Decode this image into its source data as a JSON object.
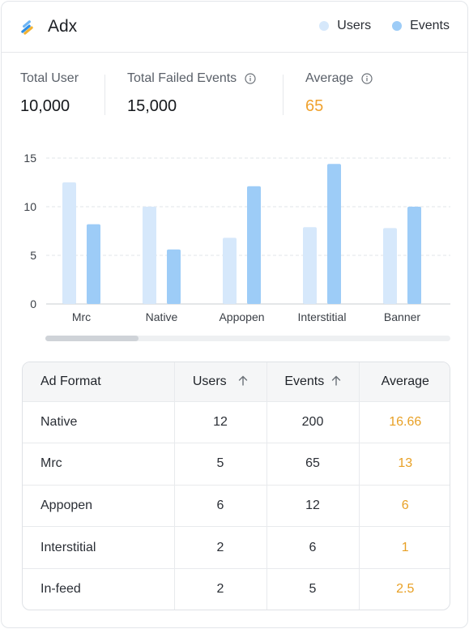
{
  "header": {
    "title": "Adx",
    "legend": [
      {
        "label": "Users",
        "color": "#d6e8fb"
      },
      {
        "label": "Events",
        "color": "#9dccf7"
      }
    ]
  },
  "stats": [
    {
      "label": "Total User",
      "value": "10,000",
      "info": false
    },
    {
      "label": "Total Failed Events",
      "value": "15,000",
      "info": true
    },
    {
      "label": "Average",
      "value": "65",
      "info": true,
      "value_color": "#f0a22e"
    }
  ],
  "chart_data": {
    "type": "bar",
    "categories": [
      "Mrc",
      "Native",
      "Appopen",
      "Interstitial",
      "Banner"
    ],
    "series": [
      {
        "name": "Users",
        "color": "#d6e8fb",
        "values": [
          12.5,
          10,
          6.8,
          7.9,
          7.8
        ]
      },
      {
        "name": "Events",
        "color": "#9dccf7",
        "values": [
          8.2,
          5.6,
          12.1,
          14.4,
          10
        ]
      }
    ],
    "yticks": [
      0,
      5,
      10,
      15
    ],
    "ylim": [
      0,
      15
    ],
    "grid": true
  },
  "table": {
    "columns": [
      "Ad Format",
      "Users",
      "Events",
      "Average"
    ],
    "rows": [
      [
        "Native",
        "12",
        "200",
        "16.66"
      ],
      [
        "Mrc",
        "5",
        "65",
        "13"
      ],
      [
        "Appopen",
        "6",
        "12",
        "6"
      ],
      [
        "Interstitial",
        "2",
        "6",
        "1"
      ],
      [
        "In-feed",
        "2",
        "5",
        "2.5"
      ]
    ]
  }
}
